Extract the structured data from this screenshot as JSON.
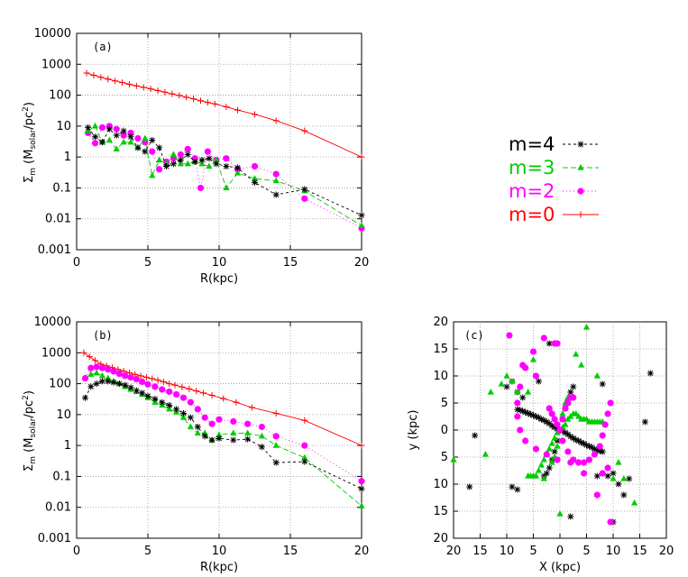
{
  "figure": {
    "legend": [
      {
        "label": "m=4",
        "color": "#000000",
        "marker": "star",
        "dash": "3,3"
      },
      {
        "label": "m=3",
        "color": "#00cc00",
        "marker": "triangle",
        "dash": "6,3"
      },
      {
        "label": "m=2",
        "color": "#ff00ff",
        "marker": "circle",
        "dash": "1,3"
      },
      {
        "label": "m=0",
        "color": "#ff0000",
        "marker": "plus",
        "dash": ""
      }
    ]
  },
  "chart_data": [
    {
      "type": "line",
      "panel_label": "(a)",
      "xlabel": "R(kpc)",
      "ylabel_main": "Σ",
      "ylabel_sub": "m",
      "ylabel_paren": " (M",
      "ylabel_sub2": "solar",
      "ylabel_rest": "/pc",
      "ylabel_sup": "2",
      "ylabel_close": ")",
      "xlim": [
        0,
        20
      ],
      "ylim": [
        0.001,
        10000
      ],
      "yscale": "log",
      "xticks": [
        "0",
        "5",
        "10",
        "15",
        "20"
      ],
      "yticks": [
        "0.001",
        "0.01",
        "0.1",
        "1",
        "10",
        "100",
        "1000",
        "10000"
      ],
      "grid": true,
      "series": [
        {
          "name": "m=0",
          "x": [
            0.7,
            1.2,
            1.7,
            2.2,
            2.7,
            3.2,
            3.7,
            4.2,
            4.7,
            5.2,
            5.7,
            6.2,
            6.7,
            7.2,
            7.7,
            8.2,
            8.7,
            9.2,
            9.7,
            10.5,
            11.3,
            12.5,
            14,
            16,
            20
          ],
          "y": [
            520,
            440,
            380,
            330,
            290,
            255,
            225,
            200,
            180,
            160,
            140,
            125,
            110,
            98,
            86,
            76,
            66,
            58,
            52,
            42,
            33,
            24,
            15,
            7,
            1
          ]
        },
        {
          "name": "m=2",
          "x": [
            0.8,
            1.3,
            1.8,
            2.3,
            2.8,
            3.3,
            3.8,
            4.3,
            4.8,
            5.3,
            5.8,
            6.3,
            6.8,
            7.3,
            7.8,
            8.3,
            8.7,
            9.2,
            9.8,
            10.5,
            11.3,
            12.5,
            14,
            16,
            20
          ],
          "y": [
            6,
            2.8,
            9,
            10,
            8,
            5,
            6,
            4,
            3,
            1.5,
            0.4,
            0.7,
            0.9,
            1.2,
            1.8,
            0.9,
            0.1,
            1.5,
            0.8,
            0.9,
            0.4,
            0.5,
            0.28,
            0.045,
            0.005
          ]
        },
        {
          "name": "m=3",
          "x": [
            0.8,
            1.3,
            1.8,
            2.3,
            2.8,
            3.3,
            3.8,
            4.3,
            4.8,
            5.3,
            5.8,
            6.3,
            6.8,
            7.3,
            7.8,
            8.3,
            8.8,
            9.3,
            9.8,
            10.5,
            11.3,
            12.5,
            14,
            16,
            20
          ],
          "y": [
            7,
            10,
            3,
            3.5,
            1.8,
            3,
            3,
            2,
            4,
            0.25,
            0.8,
            0.6,
            1.2,
            0.6,
            0.6,
            0.7,
            0.6,
            0.5,
            0.8,
            0.1,
            0.3,
            0.2,
            0.17,
            0.08,
            0.006
          ]
        },
        {
          "name": "m=4",
          "x": [
            0.8,
            1.3,
            1.8,
            2.3,
            2.8,
            3.3,
            3.8,
            4.3,
            4.8,
            5.3,
            5.8,
            6.3,
            6.8,
            7.3,
            7.8,
            8.3,
            8.8,
            9.3,
            9.8,
            10.5,
            11.3,
            12.5,
            14,
            16,
            20
          ],
          "y": [
            9,
            4.5,
            3,
            8,
            5,
            7,
            4.5,
            2,
            1.5,
            3.5,
            2,
            0.5,
            0.6,
            0.8,
            1.2,
            0.7,
            0.8,
            0.9,
            0.6,
            0.5,
            0.45,
            0.15,
            0.06,
            0.09,
            0.013
          ]
        }
      ]
    },
    {
      "type": "line",
      "panel_label": "(b)",
      "xlabel": "R(kpc)",
      "ylabel_main": "Σ",
      "ylabel_sub": "m",
      "ylabel_paren": " (M",
      "ylabel_sub2": "solar",
      "ylabel_rest": "/pc",
      "ylabel_sup": "2",
      "ylabel_close": ")",
      "xlim": [
        0,
        20
      ],
      "ylim": [
        0.001,
        10000
      ],
      "yscale": "log",
      "xticks": [
        "0",
        "5",
        "10",
        "15",
        "20"
      ],
      "yticks": [
        "0.001",
        "0.01",
        "0.1",
        "1",
        "10",
        "100",
        "1000",
        "10000"
      ],
      "grid": true,
      "series": [
        {
          "name": "m=0",
          "x": [
            0.5,
            0.9,
            1.3,
            1.7,
            2.1,
            2.5,
            2.9,
            3.3,
            3.7,
            4.1,
            4.5,
            4.9,
            5.3,
            5.7,
            6.1,
            6.5,
            6.9,
            7.4,
            7.9,
            8.4,
            8.9,
            9.5,
            10.3,
            11.2,
            12.3,
            14,
            16,
            20
          ],
          "y": [
            1000,
            750,
            560,
            430,
            380,
            330,
            290,
            255,
            225,
            200,
            180,
            160,
            145,
            130,
            115,
            100,
            90,
            78,
            68,
            58,
            50,
            42,
            33,
            25,
            17,
            11,
            6.5,
            1
          ]
        },
        {
          "name": "m=2",
          "x": [
            0.6,
            1.0,
            1.4,
            1.8,
            2.2,
            2.6,
            3.0,
            3.4,
            3.8,
            4.2,
            4.6,
            5.0,
            5.5,
            6.0,
            6.5,
            7.0,
            7.5,
            8.0,
            8.5,
            9.0,
            9.5,
            10.0,
            11.0,
            12.0,
            13.0,
            14.0,
            16.0,
            20
          ],
          "y": [
            150,
            320,
            350,
            320,
            290,
            250,
            210,
            180,
            160,
            140,
            115,
            95,
            80,
            65,
            55,
            45,
            35,
            25,
            15,
            8,
            5,
            7,
            6,
            5,
            4,
            2,
            1,
            0.07
          ]
        },
        {
          "name": "m=3",
          "x": [
            1.0,
            1.4,
            1.8,
            2.2,
            2.6,
            3.0,
            3.4,
            3.8,
            4.2,
            4.6,
            5.0,
            5.5,
            6.0,
            6.5,
            7.0,
            7.5,
            8.0,
            8.5,
            9.0,
            9.5,
            10.0,
            11.0,
            12.0,
            13.0,
            14.0,
            16.0,
            20
          ],
          "y": [
            200,
            220,
            180,
            150,
            120,
            100,
            80,
            65,
            55,
            45,
            35,
            25,
            20,
            15,
            12,
            8,
            4,
            2.5,
            2.5,
            1.5,
            2.2,
            2.5,
            2.5,
            2,
            1,
            0.4,
            0.011
          ]
        },
        {
          "name": "m=4",
          "x": [
            0.6,
            1.0,
            1.4,
            1.8,
            2.2,
            2.6,
            3.0,
            3.4,
            3.8,
            4.2,
            4.6,
            5.0,
            5.5,
            6.0,
            6.5,
            7.0,
            7.5,
            8.0,
            8.5,
            9.0,
            9.5,
            10.0,
            11.0,
            12.0,
            13.0,
            14.0,
            16.0,
            20
          ],
          "y": [
            35,
            80,
            100,
            120,
            120,
            110,
            100,
            90,
            75,
            60,
            50,
            40,
            32,
            25,
            20,
            15,
            11,
            8,
            4,
            2,
            1.5,
            1.7,
            1.5,
            1.6,
            0.9,
            0.28,
            0.3,
            0.04
          ]
        }
      ]
    },
    {
      "type": "scatter",
      "panel_label": "(c)",
      "xlabel": "X (kpc)",
      "ylabel": "y (kpc)",
      "xlim": [
        -20,
        20
      ],
      "ylim": [
        -20,
        20
      ],
      "xticks": [
        "20",
        "15",
        "10",
        "5",
        "0",
        "5",
        "10",
        "15",
        "20"
      ],
      "yticks": [
        "20",
        "15",
        "10",
        "5",
        "0",
        "5",
        "10",
        "15",
        "20"
      ],
      "grid": true,
      "series": [
        {
          "name": "m=4",
          "x": [
            0.5,
            1,
            1.5,
            2,
            2.5,
            3,
            3.5,
            4,
            4.5,
            5,
            5.5,
            6,
            6.5,
            7,
            7.5,
            8,
            -0.5,
            -1,
            -1.5,
            -2,
            -2.5,
            -3,
            -3.5,
            -4,
            -4.5,
            -5,
            -5.5,
            -6,
            -6.5,
            -7,
            -7.5,
            -8,
            0.5,
            1,
            1.5,
            2,
            2.5,
            -0.5,
            -1,
            -1.5,
            -2,
            -2.5,
            -3,
            -10,
            -9,
            -8,
            -7,
            10,
            11,
            12,
            13,
            17,
            16,
            -17,
            -16,
            -9,
            -8,
            7,
            9,
            10,
            -2,
            2,
            -4,
            8
          ],
          "y": [
            -0.2,
            -0.5,
            -0.8,
            -1.2,
            -1.5,
            -1.8,
            -2,
            -2.3,
            -2.5,
            -2.8,
            -3,
            -3.2,
            -3.5,
            -3.7,
            -3.9,
            -4,
            0.2,
            0.5,
            0.8,
            1.2,
            1.5,
            1.8,
            2,
            2.3,
            2.5,
            2.7,
            2.9,
            3.1,
            3.3,
            3.5,
            3.7,
            3.8,
            2,
            4,
            5.5,
            7,
            8,
            -2,
            -4,
            -5.5,
            -7,
            -8,
            -8.5,
            8,
            9,
            7,
            6,
            -8,
            -10,
            -12,
            -9,
            10.5,
            1.5,
            -10.5,
            -1,
            -10.5,
            -11,
            -8.5,
            -8.5,
            -17,
            16,
            -16,
            9,
            8.5
          ]
        },
        {
          "name": "m=3",
          "x": [
            0.5,
            1,
            1.5,
            2,
            2.5,
            3,
            3.5,
            4,
            4.5,
            5,
            5.5,
            6,
            6.5,
            7,
            7.5,
            8,
            -0.5,
            -1,
            -1.5,
            -2,
            -2.5,
            -3,
            -3.5,
            -4,
            -4.5,
            -5,
            -5.5,
            -6,
            0.5,
            1,
            1.5,
            -0.5,
            -1,
            -1.5,
            5,
            3,
            -5,
            -13,
            -11,
            -10,
            -9,
            -8,
            -6,
            -14,
            -20,
            -3,
            0,
            10,
            11,
            12,
            14,
            4,
            7
          ],
          "y": [
            0.5,
            1,
            2,
            2.5,
            3,
            3,
            2.5,
            2,
            2,
            2,
            1.5,
            1.5,
            1.5,
            1.5,
            1.5,
            1.5,
            -0.5,
            -1.5,
            -2.5,
            -3.5,
            -4.5,
            -5.5,
            -6.5,
            -7.5,
            -8.5,
            -8.5,
            -8.5,
            -8.5,
            3,
            5,
            6,
            -3,
            -5,
            -6,
            19,
            14,
            13,
            7,
            8.5,
            10,
            9,
            7,
            7,
            -4.5,
            -5.5,
            -9,
            -15.5,
            -9,
            -6,
            -9,
            -13.5,
            12,
            10
          ]
        },
        {
          "name": "m=2",
          "x": [
            9.5,
            7,
            4.5,
            2,
            -0.5,
            -2.5,
            -4.5,
            -6.5,
            -7.5,
            -8,
            -8,
            -7.5,
            -6.5,
            -5,
            -3,
            -1,
            0.5,
            1.5,
            2.5,
            3.5,
            4.5,
            5.5,
            6.5,
            7.5,
            8,
            8.5,
            9,
            9.5,
            -0.5,
            -1,
            -1.5,
            -2,
            0,
            0.5,
            1,
            1.5,
            2,
            2.5,
            -9.5,
            -7,
            -4.5,
            9,
            8,
            -0.5
          ],
          "y": [
            -17,
            -12,
            -8,
            -6,
            -5.5,
            -4.5,
            -3.5,
            -2,
            0,
            2.5,
            5,
            8,
            11.5,
            14.5,
            17,
            16,
            -2,
            -4,
            -5.5,
            -6,
            -6,
            -5.5,
            -4.5,
            -3,
            -1,
            1,
            3,
            5,
            1,
            2,
            3,
            4,
            0,
            2,
            4,
            5,
            6,
            6,
            17.5,
            12,
            10,
            -7,
            -8,
            16
          ]
        }
      ]
    }
  ]
}
